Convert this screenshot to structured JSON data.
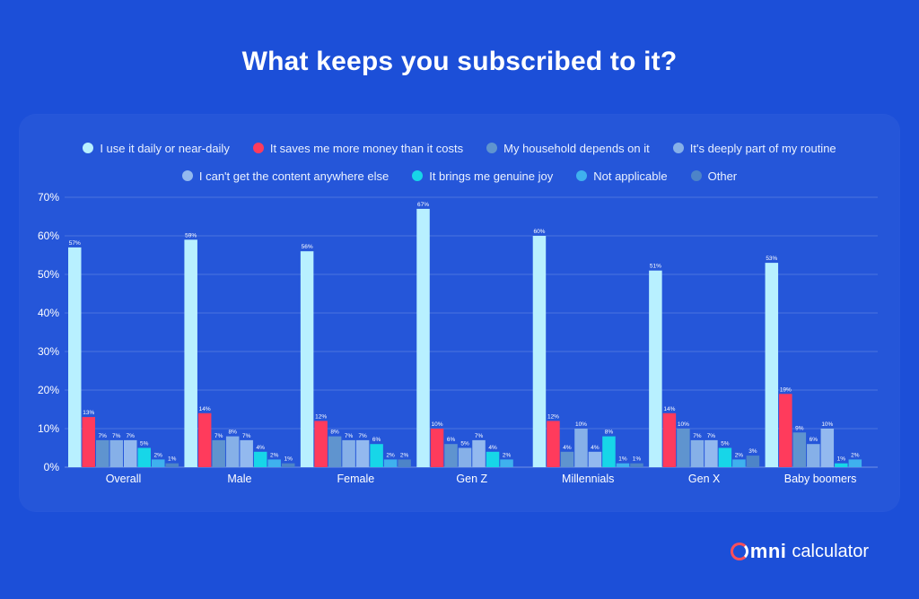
{
  "title": "What keeps you subscribed to it?",
  "brand": {
    "omni": "mni",
    "calculator": "calculator"
  },
  "chart_data": {
    "type": "bar",
    "title": "What keeps you subscribed to it?",
    "xlabel": "",
    "ylabel": "",
    "ylim": [
      0,
      70
    ],
    "yticks": [
      0,
      10,
      20,
      30,
      40,
      50,
      60,
      70
    ],
    "ytick_suffix": "%",
    "grid": true,
    "legend_placement": "top",
    "categories": [
      "Overall",
      "Male",
      "Female",
      "Gen Z",
      "Millennials",
      "Gen X",
      "Baby boomers"
    ],
    "series": [
      {
        "name": "I use it daily or near-daily",
        "color": "#b8f0ff",
        "values": [
          57,
          59,
          56,
          67,
          60,
          51,
          53
        ]
      },
      {
        "name": "It saves me more money than it costs",
        "color": "#ff3b5c",
        "values": [
          13,
          14,
          12,
          10,
          12,
          14,
          19
        ]
      },
      {
        "name": "My household depends on it",
        "color": "#5f94cf",
        "values": [
          7,
          7,
          8,
          6,
          4,
          10,
          9
        ]
      },
      {
        "name": "It's deeply part of my routine",
        "color": "#86b0e8",
        "values": [
          7,
          8,
          7,
          5,
          10,
          7,
          6
        ]
      },
      {
        "name": "I can't get the content anywhere else",
        "color": "#93b9ef",
        "values": [
          7,
          7,
          7,
          7,
          4,
          7,
          10
        ]
      },
      {
        "name": "It brings me genuine joy",
        "color": "#17d6e8",
        "values": [
          5,
          4,
          6,
          4,
          8,
          5,
          1
        ]
      },
      {
        "name": "Not applicable",
        "color": "#3fb1ee",
        "values": [
          2,
          2,
          2,
          2,
          1,
          2,
          2
        ]
      },
      {
        "name": "Other",
        "color": "#4d84c8",
        "values": [
          1,
          1,
          2,
          null,
          1,
          3,
          null
        ]
      }
    ]
  }
}
